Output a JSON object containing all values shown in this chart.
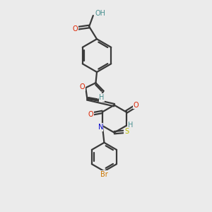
{
  "background_color": "#ebebeb",
  "atom_colors": {
    "C": "#3a3a3a",
    "H": "#4a9090",
    "O": "#dd2200",
    "N": "#0000cc",
    "S": "#bbbb00",
    "Br": "#cc7700"
  },
  "bond_color": "#3a3a3a",
  "bond_width": 1.6,
  "fig_size": [
    3.0,
    3.0
  ],
  "dpi": 100
}
